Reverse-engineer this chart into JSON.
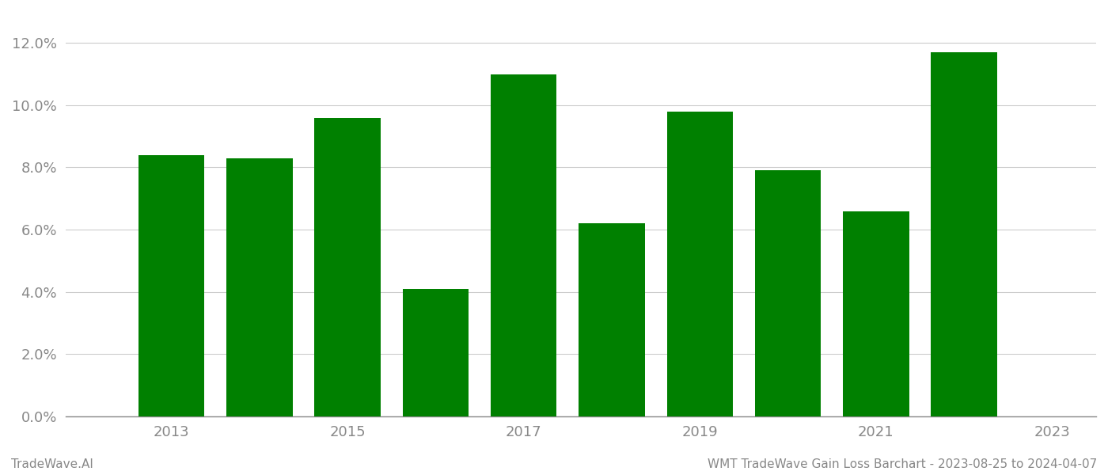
{
  "years": [
    2013,
    2014,
    2015,
    2016,
    2017,
    2018,
    2019,
    2020,
    2021,
    2022
  ],
  "values": [
    0.084,
    0.083,
    0.096,
    0.041,
    0.11,
    0.062,
    0.098,
    0.079,
    0.066,
    0.117
  ],
  "bar_color": "#008000",
  "background_color": "#ffffff",
  "grid_color": "#cccccc",
  "axis_color": "#888888",
  "tick_color": "#888888",
  "ylim": [
    0,
    0.13
  ],
  "yticks": [
    0.0,
    0.02,
    0.04,
    0.06,
    0.08,
    0.1,
    0.12
  ],
  "xtick_labels": [
    "2013",
    "2015",
    "2017",
    "2019",
    "2021",
    "2023"
  ],
  "xtick_positions": [
    2013,
    2015,
    2017,
    2019,
    2021,
    2023
  ],
  "xlim": [
    2011.8,
    2023.5
  ],
  "bar_width": 0.75,
  "footer_left": "TradeWave.AI",
  "footer_right": "WMT TradeWave Gain Loss Barchart - 2023-08-25 to 2024-04-07",
  "footer_color": "#888888",
  "footer_fontsize": 11
}
